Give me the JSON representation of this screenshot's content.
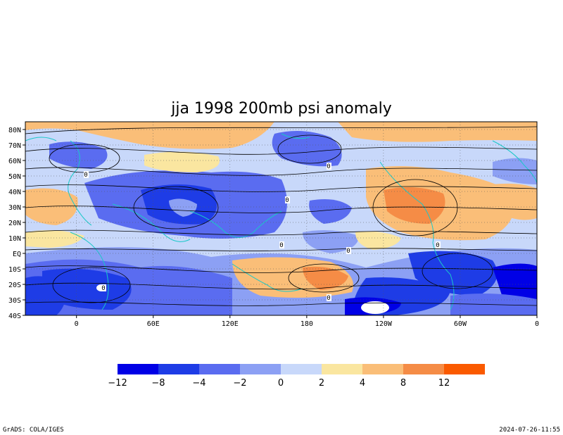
{
  "title": "jja 1998 200mb psi anomaly",
  "colors": {
    "frame": "#000000",
    "coast": "#19c8c8",
    "streamline": "#000000"
  },
  "map": {
    "lat_labels": [
      "80N",
      "70N",
      "60N",
      "50N",
      "40N",
      "30N",
      "20N",
      "10N",
      "EQ",
      "10S",
      "20S",
      "30S",
      "40S"
    ],
    "lat_values": [
      80,
      70,
      60,
      50,
      40,
      30,
      20,
      10,
      0,
      -10,
      -20,
      -30,
      -40
    ],
    "lon_labels": [
      "0",
      "60E",
      "120E",
      "180",
      "120W",
      "60W",
      "0"
    ],
    "lon_values": [
      0,
      60,
      120,
      180,
      240,
      300,
      360
    ],
    "lat_range": [
      -40,
      85
    ],
    "lon_range": [
      -40,
      360
    ]
  },
  "colorbar": {
    "colors": [
      "#0000e6",
      "#1e3ce6",
      "#5a6cf0",
      "#8ca0f4",
      "#c8d8fa",
      "#fae6a0",
      "#fabe78",
      "#f58c46",
      "#fa5a00"
    ],
    "tick_labels": [
      "−12",
      "−8",
      "−4",
      "−2",
      "0",
      "2",
      "4",
      "8",
      "12"
    ]
  },
  "contour_labels": [
    "0",
    "0",
    "0",
    "0",
    "0",
    "0",
    "0",
    "0"
  ],
  "footer": {
    "left": "GrADS: COLA/IGES",
    "right": "2024-07-26-11:55"
  }
}
